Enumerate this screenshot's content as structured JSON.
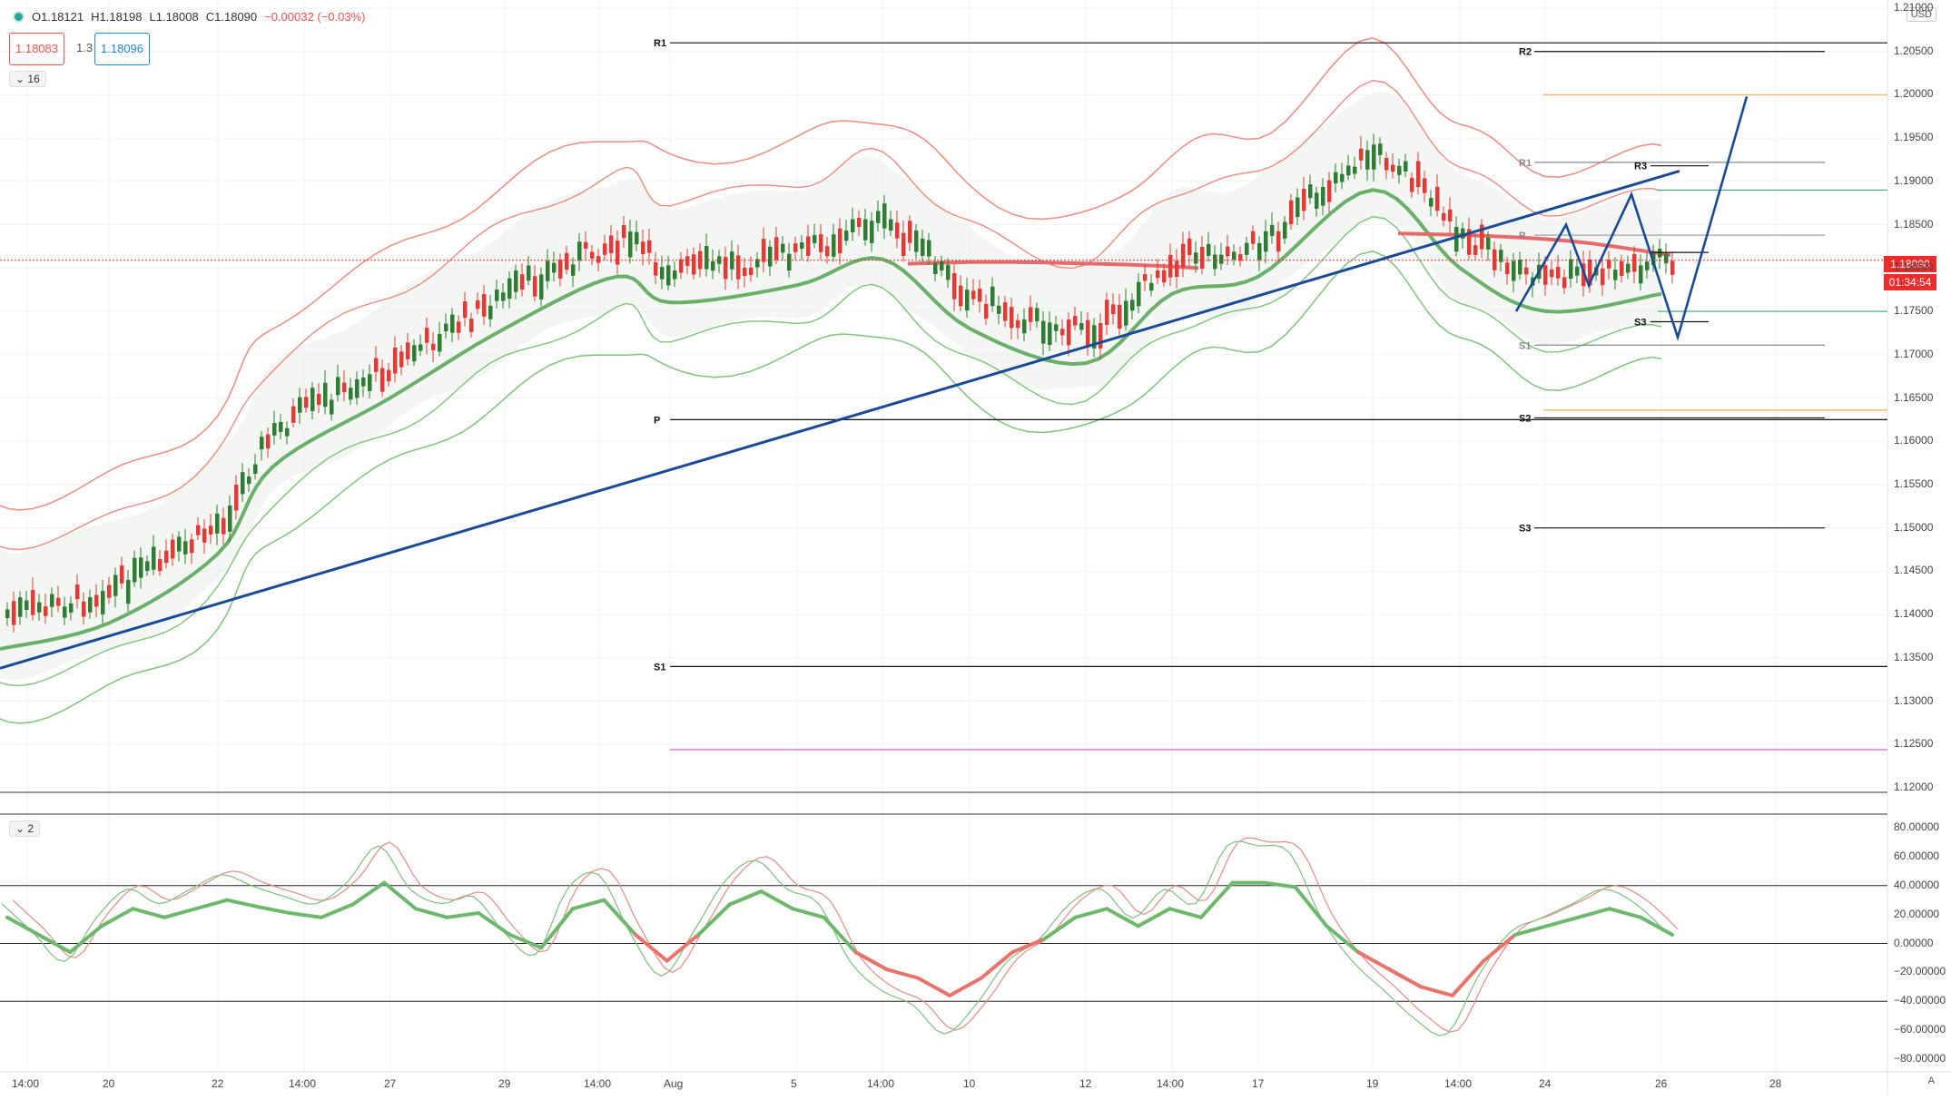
{
  "legend": {
    "open": "O1.18121",
    "high": "H1.18198",
    "low": "L1.18008",
    "close": "C1.18090",
    "change": "−0.00032 (−0.03%)"
  },
  "sell_price": "1.18083",
  "spread": "1.3",
  "buy_price": "1.18096",
  "main_collapse_label": "16",
  "osc_collapse_label": "2",
  "currency": "USD",
  "price_axis": [
    "1.21000",
    "1.20500",
    "1.20000",
    "1.19500",
    "1.19000",
    "1.18500",
    "1.18000",
    "1.17500",
    "1.17000",
    "1.16500",
    "1.16000",
    "1.15500",
    "1.15000",
    "1.14500",
    "1.14000",
    "1.13500",
    "1.13000",
    "1.12500",
    "1.12000"
  ],
  "current_price": "1.18090",
  "countdown": "01:34:54",
  "osc_axis": [
    "80.00000",
    "60.00000",
    "40.00000",
    "20.00000",
    "0.00000",
    "−20.00000",
    "−40.00000",
    "−60.00000",
    "−80.00000"
  ],
  "time_axis": [
    "14:00",
    "20",
    "22",
    "14:00",
    "27",
    "29",
    "14:00",
    "Aug",
    "5",
    "14:00",
    "10",
    "12",
    "14:00",
    "17",
    "19",
    "14:00",
    "24",
    "26",
    "28"
  ],
  "pivots_left": [
    "R1",
    "P",
    "S1"
  ],
  "pivots_right": [
    "R2",
    "R1",
    "P",
    "S1",
    "S2",
    "S3"
  ],
  "pivots_small": [
    "R3",
    "S3"
  ],
  "auto_scale_label": "A",
  "colors": {
    "bull": "#2e7d32",
    "bear": "#e53935",
    "trend": "#1a4a96",
    "band_red": "#ef8a80",
    "band_green": "#7cc47c",
    "price_line": "#ef2b2b",
    "magenta": "#e05ce0",
    "orange": "#f2b36a",
    "teal": "#3aa38a"
  },
  "chart_data": {
    "type": "line",
    "title": "",
    "xlabel": "",
    "ylabel": "",
    "ylim": [
      1.12,
      1.21
    ],
    "x": [
      "14:00",
      "20",
      "22",
      "14:00",
      "27",
      "29",
      "14:00",
      "Aug",
      "5",
      "14:00",
      "10",
      "12",
      "14:00",
      "17",
      "19",
      "14:00",
      "24",
      "26"
    ],
    "series": [
      {
        "name": "",
        "values": [
          1.14,
          1.143,
          1.151,
          1.161,
          1.169,
          1.177,
          1.183,
          1.18,
          1.182,
          1.185,
          1.177,
          1.173,
          1.181,
          1.183,
          1.193,
          1.184,
          1.179,
          1.181
        ]
      }
    ],
    "pivot_levels": {
      "R1_left": 1.206,
      "P_left": 1.1625,
      "S1_left": 1.134,
      "R2": 1.205,
      "R1": 1.1922,
      "P": 1.1838,
      "S1": 1.1711,
      "S2": 1.1627,
      "S3": 1.15,
      "R3_small": 1.1918,
      "S3_small": 1.1738
    },
    "oscillator": {
      "ylim": [
        -80,
        80
      ],
      "levels": [
        40,
        0,
        -40
      ],
      "values": [
        30,
        10,
        -10,
        20,
        40,
        30,
        40,
        50,
        42,
        35,
        30,
        45,
        70,
        40,
        30,
        35,
        10,
        -5,
        40,
        50,
        10,
        -20,
        10,
        45,
        60,
        40,
        30,
        -10,
        -30,
        -40,
        -60,
        -40,
        -10,
        5,
        30,
        40,
        20,
        40,
        30,
        70,
        70,
        65,
        20,
        -10,
        -30,
        -50,
        -60,
        -20,
        10,
        20,
        30,
        40,
        30,
        10
      ]
    }
  }
}
